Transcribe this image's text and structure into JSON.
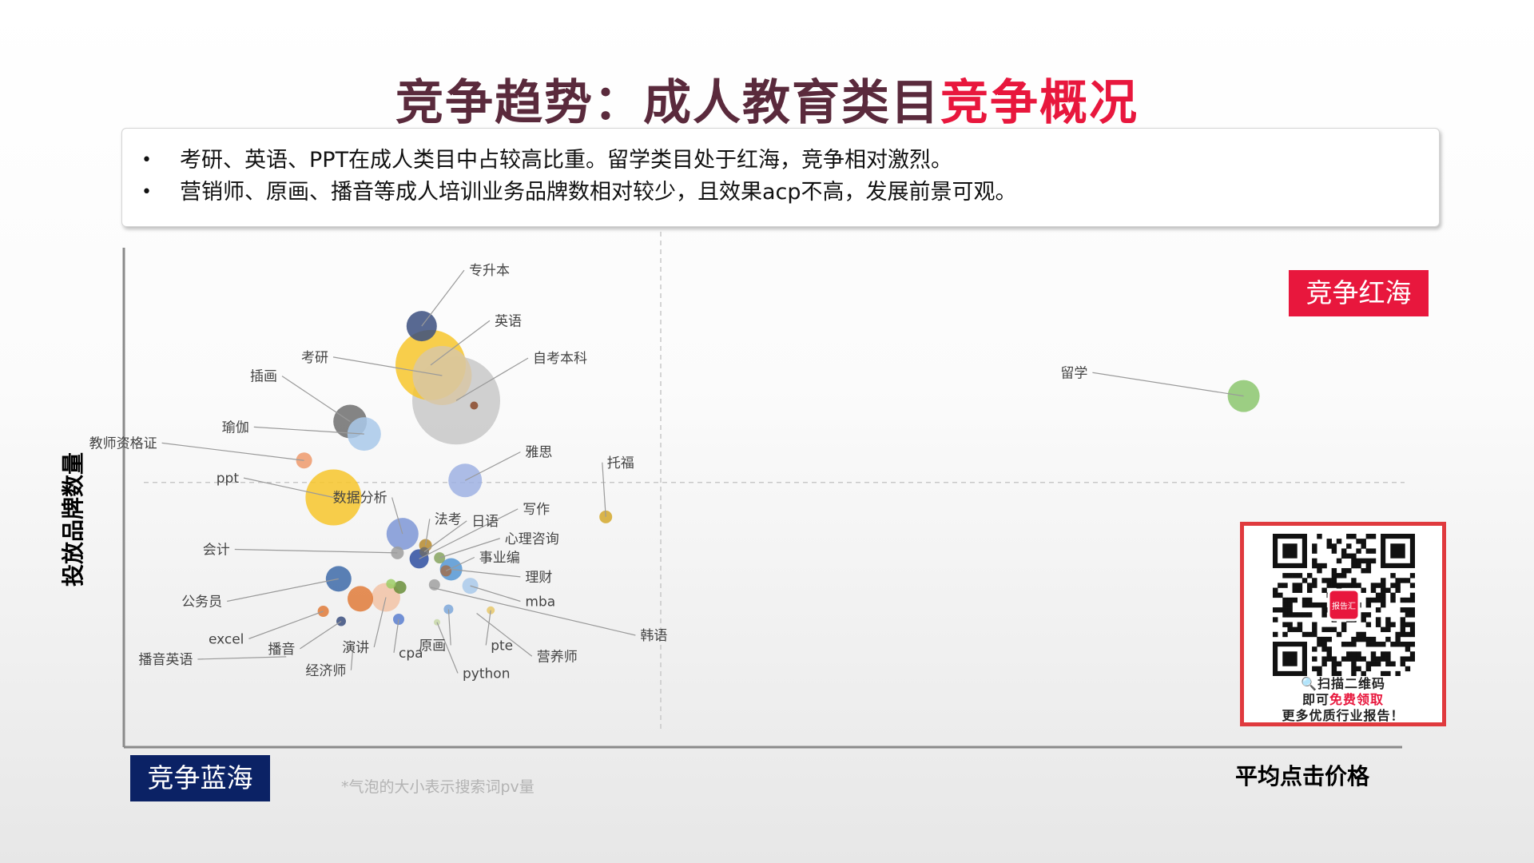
{
  "title": {
    "main": "竞争趋势：成人教育类目",
    "highlight": "竞争概况"
  },
  "summary": {
    "bullet": "•",
    "lines": [
      "考研、英语、PPT在成人类目中占较高比重。留学类目处于红海，竞争相对激烈。",
      "营销师、原画、播音等成人培训业务品牌数相对较少，且效果acp不高，发展前景可观。"
    ]
  },
  "labels": {
    "red_sea": "竞争红海",
    "blue_sea": "竞争蓝海",
    "note": "*气泡的大小表示搜索词pv量"
  },
  "qr": {
    "badge": "报告汇",
    "line1": "🔍扫描二维码",
    "line2_prefix": "即可",
    "line2_highlight": "免费领取",
    "line3": "更多优质行业报告！"
  },
  "colors": {
    "accent_red": "#e8173d",
    "navy": "#0b2265",
    "title": "#5a2a3c"
  },
  "chart_data": {
    "type": "scatter",
    "xlabel": "平均点击价格",
    "ylabel": "投放品牌数量",
    "xlim": [
      0,
      100
    ],
    "ylim": [
      0,
      100
    ],
    "quadrant_lines": {
      "x": 42,
      "y": 53
    },
    "grid": false,
    "points": [
      {
        "name": "专升本",
        "x": 23.3,
        "y": 84.3,
        "size": 19,
        "color": "#3b4f7f",
        "label": [
          27,
          95.5
        ]
      },
      {
        "name": "英语",
        "x": 24.0,
        "y": 76.5,
        "size": 44,
        "color": "#f7c52b",
        "label": [
          29,
          85.4
        ]
      },
      {
        "name": "考研",
        "x": 24.9,
        "y": 74.4,
        "size": 37,
        "color": "#d8c7a6",
        "label": [
          16,
          78.1
        ]
      },
      {
        "name": "自考本科",
        "x": 26.0,
        "y": 69.4,
        "size": 55,
        "color": "#c8c8c8",
        "label": [
          32,
          77.9
        ]
      },
      {
        "name": "_dot",
        "x": 27.4,
        "y": 68.4,
        "size": 5,
        "color": "#8b4a2b",
        "label": null
      },
      {
        "name": "插画",
        "x": 17.7,
        "y": 65.2,
        "size": 21,
        "color": "#6e6e6e",
        "label": [
          12,
          74.3
        ]
      },
      {
        "name": "瑜伽",
        "x": 18.8,
        "y": 62.7,
        "size": 21,
        "color": "#a9c9ea",
        "label": [
          9.8,
          64.1
        ]
      },
      {
        "name": "教师资格证",
        "x": 14.1,
        "y": 57.4,
        "size": 10,
        "color": "#ee9a6c",
        "label": [
          2.6,
          60.9
        ]
      },
      {
        "name": "雅思",
        "x": 26.7,
        "y": 53.4,
        "size": 21,
        "color": "#9fb2e3",
        "label": [
          31.4,
          59.1
        ]
      },
      {
        "name": "托福",
        "x": 37.7,
        "y": 46.1,
        "size": 8,
        "color": "#d4a82c",
        "label": [
          37.8,
          57.0
        ]
      },
      {
        "name": "留学",
        "x": 87.6,
        "y": 70.3,
        "size": 20,
        "color": "#8bc66d",
        "label": [
          75.4,
          75.0
        ]
      },
      {
        "name": "ppt",
        "x": 16.4,
        "y": 50.0,
        "size": 35,
        "color": "#f7c52b",
        "label": [
          9.0,
          53.9
        ]
      },
      {
        "name": "数据分析",
        "x": 21.8,
        "y": 42.7,
        "size": 20,
        "color": "#7e96d6",
        "label": [
          20.6,
          50.0
        ]
      },
      {
        "name": "法考",
        "x": 23.6,
        "y": 40.4,
        "size": 8,
        "color": "#b58a2e",
        "label": [
          24.3,
          45.7
        ]
      },
      {
        "name": "日语",
        "x": 23.5,
        "y": 39.1,
        "size": 6,
        "color": "#6b6b6b",
        "label": [
          27.2,
          45.3
        ]
      },
      {
        "name": "写作",
        "x": 23.1,
        "y": 37.7,
        "size": 12,
        "color": "#2e4ea0",
        "label": [
          31.2,
          47.7
        ]
      },
      {
        "name": "心理咨询",
        "x": 24.7,
        "y": 37.9,
        "size": 7,
        "color": "#86a35f",
        "label": [
          29.8,
          41.8
        ]
      },
      {
        "name": "事业编",
        "x": 25.2,
        "y": 35.3,
        "size": 7,
        "color": "#a07050",
        "label": [
          27.8,
          38.0
        ]
      },
      {
        "name": "会计",
        "x": 21.4,
        "y": 38.9,
        "size": 8,
        "color": "#9e9e9e",
        "label": [
          8.3,
          39.6
        ]
      },
      {
        "name": "理财",
        "x": 25.6,
        "y": 35.6,
        "size": 14,
        "color": "#5596d4",
        "label": [
          31.4,
          34.1
        ]
      },
      {
        "name": "mba",
        "x": 27.1,
        "y": 32.3,
        "size": 10,
        "color": "#a9c9ea",
        "label": [
          31.4,
          29.2
        ]
      },
      {
        "name": "公务员",
        "x": 16.8,
        "y": 33.7,
        "size": 16,
        "color": "#3d6aa8",
        "label": [
          7.7,
          29.2
        ]
      },
      {
        "name": "_orange",
        "x": 18.5,
        "y": 29.7,
        "size": 16,
        "color": "#e07b3a",
        "label": null
      },
      {
        "name": "演讲",
        "x": 20.5,
        "y": 30.0,
        "size": 18,
        "color": "#f2c3a6",
        "label": [
          19.2,
          20.0
        ]
      },
      {
        "name": "_green",
        "x": 21.6,
        "y": 32.0,
        "size": 8,
        "color": "#6a8e3a",
        "label": null
      },
      {
        "name": "_lime",
        "x": 20.9,
        "y": 32.7,
        "size": 6,
        "color": "#9ccc65",
        "label": null
      },
      {
        "name": "_grey",
        "x": 24.3,
        "y": 32.5,
        "size": 7,
        "color": "#a0a0a0",
        "label": null
      },
      {
        "name": "excel",
        "x": 15.6,
        "y": 27.2,
        "size": 7,
        "color": "#e07b3a",
        "label": [
          9.4,
          21.7
        ]
      },
      {
        "name": "播音",
        "x": 17.0,
        "y": 25.2,
        "size": 6,
        "color": "#3b4f7f",
        "label": [
          13.4,
          19.7
        ]
      },
      {
        "name": "cpa",
        "x": 21.5,
        "y": 25.6,
        "size": 7,
        "color": "#5a7fd0",
        "label": [
          21.5,
          18.9
        ]
      },
      {
        "name": "原画",
        "x": 25.4,
        "y": 27.6,
        "size": 6,
        "color": "#7ea8da",
        "label": [
          25.2,
          20.4
        ]
      },
      {
        "name": "pte",
        "x": 28.7,
        "y": 27.4,
        "size": 5,
        "color": "#e8c86a",
        "label": [
          28.7,
          20.4
        ]
      },
      {
        "name": "播音英语",
        "x": 12.7,
        "y": 18.1,
        "size": 0,
        "color": "#999999",
        "label": [
          5.4,
          17.6
        ]
      },
      {
        "name": "经济师",
        "x": 17.9,
        "y": 19.2,
        "size": 0,
        "color": "#999999",
        "label": [
          17.4,
          15.4
        ]
      },
      {
        "name": "python",
        "x": 24.5,
        "y": 25.0,
        "size": 4,
        "color": "#c8d8a8",
        "label": [
          26.5,
          14.8
        ]
      },
      {
        "name": "营养师",
        "x": 27.6,
        "y": 26.8,
        "size": 0,
        "color": "#999999",
        "label": [
          32.3,
          18.2
        ]
      },
      {
        "name": "韩语",
        "x": 24.0,
        "y": 32.0,
        "size": 0,
        "color": "#999999",
        "label": [
          40.4,
          22.4
        ]
      }
    ]
  }
}
